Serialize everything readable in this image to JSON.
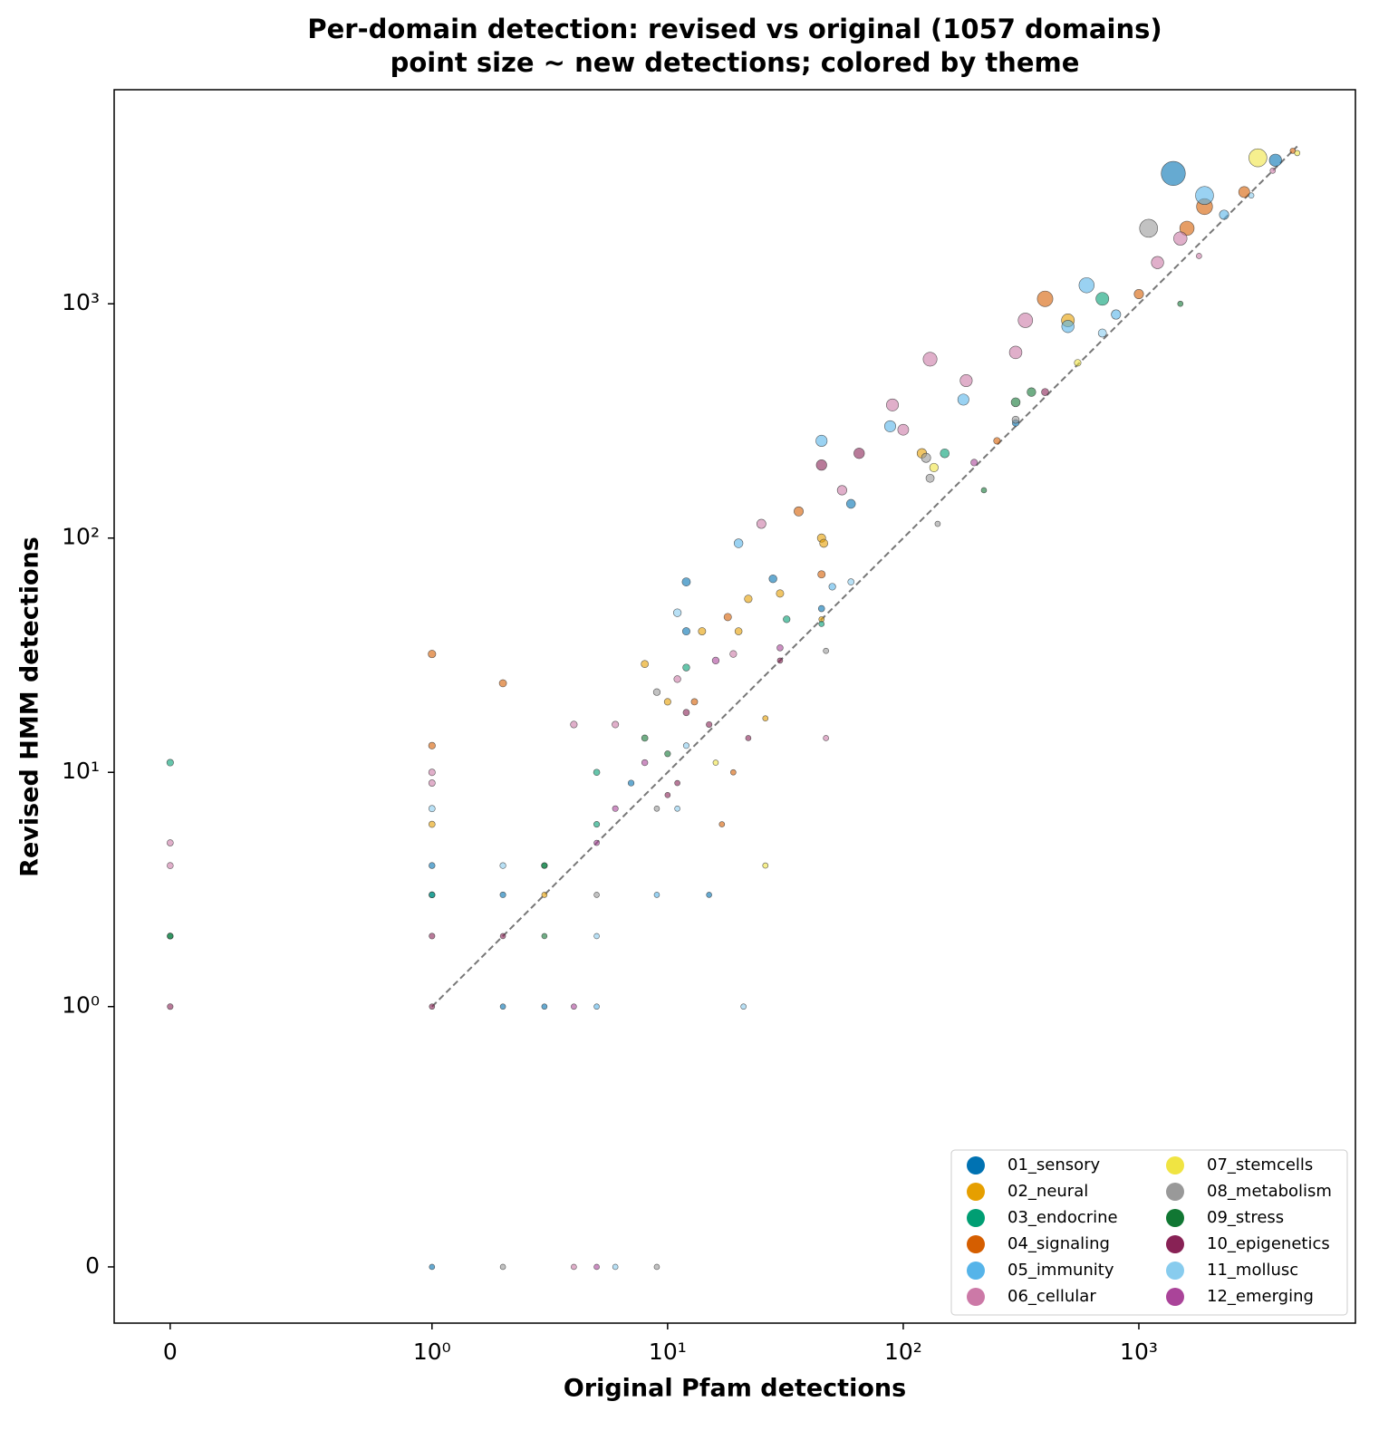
{
  "chart_data": {
    "type": "scatter",
    "title": "Per-domain detection: revised vs original (1057 domains)",
    "subtitle": "point size ~ new detections; colored by theme",
    "x_label": "Original Pfam detections",
    "y_label": "Revised HMM detections",
    "x_scale": "symlog",
    "y_scale": "symlog",
    "xlim": [
      -0.214,
      8300
    ],
    "ylim": [
      -0.216,
      8200
    ],
    "xticks": [
      0,
      {
        "value": 1,
        "label": "10⁰"
      },
      {
        "value": 10,
        "label": "10¹"
      },
      {
        "value": 100,
        "label": "10²"
      },
      {
        "value": 1000,
        "label": "10³"
      }
    ],
    "yticks": [
      0,
      {
        "value": 1,
        "label": "10⁰"
      },
      {
        "value": 10,
        "label": "10¹"
      },
      {
        "value": 100,
        "label": "10²"
      },
      {
        "value": 1000,
        "label": "10³"
      }
    ],
    "grid": false,
    "legend": "lower right",
    "identity_line": {
      "x": [
        1,
        4700
      ],
      "y": [
        1,
        4700
      ]
    },
    "series": [
      {
        "name": "01_sensory",
        "color": "#0072B2",
        "x": [
          1400,
          3800,
          12,
          12,
          28,
          60,
          1,
          1,
          1,
          2,
          2,
          7,
          15,
          3,
          300,
          45
        ],
        "y": [
          3600,
          4100,
          65,
          40,
          67,
          140,
          4,
          3,
          0,
          1,
          3,
          9,
          3,
          1,
          310,
          50
        ],
        "sizes": [
          2200,
          300,
          53,
          28,
          39,
          80,
          3,
          2,
          0,
          0,
          1,
          2,
          0,
          0,
          10,
          5
        ]
      },
      {
        "name": "02_neural",
        "color": "#E69F00",
        "x": [
          500,
          45,
          46,
          22,
          20,
          8,
          10,
          14,
          30,
          120,
          1,
          3,
          26,
          45
        ],
        "y": [
          850,
          100,
          95,
          55,
          40,
          29,
          20,
          40,
          58,
          230,
          6,
          3,
          17,
          45
        ],
        "sizes": [
          350,
          55,
          49,
          33,
          20,
          21,
          10,
          26,
          28,
          110,
          5,
          0,
          0,
          0
        ]
      },
      {
        "name": "03_endocrine",
        "color": "#009E73",
        "x": [
          700,
          0,
          0,
          1,
          150,
          12,
          32,
          5,
          5,
          3,
          45
        ],
        "y": [
          1050,
          11,
          2,
          3,
          230,
          28,
          45,
          10,
          6,
          4,
          43
        ],
        "sizes": [
          350,
          11,
          2,
          2,
          80,
          16,
          13,
          5,
          1,
          1,
          0
        ]
      },
      {
        "name": "04_signaling",
        "color": "#D55E00",
        "x": [
          400,
          1600,
          1900,
          1,
          1,
          2,
          36,
          45,
          18,
          17,
          19,
          1000,
          250,
          2800,
          4500,
          13
        ],
        "y": [
          1050,
          2100,
          2600,
          32,
          13,
          24,
          130,
          70,
          46,
          6,
          10,
          1100,
          260,
          3000,
          4500,
          20
        ],
        "sizes": [
          650,
          500,
          700,
          31,
          12,
          22,
          94,
          25,
          28,
          0,
          0,
          100,
          10,
          200,
          0,
          7
        ]
      },
      {
        "name": "05_immunity",
        "color": "#56B4E9",
        "x": [
          600,
          1900,
          45,
          180,
          88,
          20,
          50,
          500,
          800,
          2300,
          5,
          9
        ],
        "y": [
          1200,
          2900,
          260,
          390,
          300,
          95,
          62,
          800,
          900,
          2400,
          1,
          3
        ],
        "sizes": [
          600,
          1000,
          215,
          210,
          212,
          75,
          12,
          300,
          100,
          100,
          0,
          0
        ]
      },
      {
        "name": "06_cellular",
        "color": "#CC79A7",
        "x": [
          130,
          330,
          300,
          90,
          100,
          185,
          1500,
          1200,
          1800,
          55,
          25,
          19,
          11,
          4,
          0,
          0,
          1,
          1,
          6,
          47,
          4,
          3700
        ],
        "y": [
          580,
          850,
          620,
          370,
          290,
          470,
          1900,
          1500,
          1600,
          160,
          115,
          32,
          25,
          16,
          5,
          4,
          10,
          9,
          16,
          14,
          0,
          3700
        ],
        "sizes": [
          450,
          520,
          320,
          280,
          190,
          285,
          400,
          300,
          0,
          105,
          90,
          13,
          14,
          12,
          5,
          4,
          9,
          8,
          10,
          0,
          0,
          0
        ]
      },
      {
        "name": "07_stemcells",
        "color": "#F0E442",
        "x": [
          3200,
          4700,
          135,
          26,
          16,
          550
        ],
        "y": [
          4200,
          4400,
          200,
          4,
          11,
          560
        ],
        "sizes": [
          1000,
          0,
          65,
          0,
          0,
          10
        ]
      },
      {
        "name": "08_metabolism",
        "color": "#999999",
        "x": [
          1100,
          125,
          130,
          140,
          47,
          9,
          9,
          9,
          2,
          5,
          300
        ],
        "y": [
          2100,
          220,
          180,
          115,
          33,
          22,
          7,
          0,
          0,
          3,
          320
        ],
        "sizes": [
          1000,
          95,
          50,
          0,
          0,
          13,
          0,
          0,
          0,
          0,
          20
        ]
      },
      {
        "name": "09_stress",
        "color": "#117733",
        "x": [
          1500,
          300,
          220,
          10,
          8,
          3,
          3,
          0,
          350
        ],
        "y": [
          1000,
          380,
          160,
          12,
          14,
          4,
          2,
          2,
          420
        ],
        "sizes": [
          0,
          80,
          0,
          2,
          6,
          1,
          0,
          2,
          70
        ]
      },
      {
        "name": "10_epigenetics",
        "color": "#882255",
        "x": [
          65,
          45,
          12,
          30,
          15,
          22,
          11,
          2,
          1,
          0,
          1,
          400,
          10
        ],
        "y": [
          230,
          205,
          18,
          30,
          16,
          14,
          9,
          2,
          2,
          1,
          1,
          420,
          8
        ],
        "sizes": [
          165,
          160,
          6,
          0,
          1,
          0,
          0,
          0,
          1,
          1,
          0,
          20,
          0
        ]
      },
      {
        "name": "11_mollusc",
        "color": "#88CCEE",
        "x": [
          1,
          5,
          21,
          6,
          11,
          11,
          60,
          700,
          3000,
          2,
          12
        ],
        "y": [
          7,
          2,
          1,
          0,
          48,
          7,
          65,
          750,
          2900,
          4,
          13
        ],
        "sizes": [
          6,
          0,
          0,
          0,
          37,
          0,
          5,
          50,
          0,
          2,
          1
        ]
      },
      {
        "name": "12_emerging",
        "color": "#AA4499",
        "x": [
          5,
          4,
          16,
          8,
          5,
          30,
          200,
          6
        ],
        "y": [
          0,
          1,
          30,
          11,
          5,
          34,
          210,
          7
        ],
        "sizes": [
          0,
          0,
          14,
          3,
          0,
          4,
          10,
          1
        ]
      }
    ]
  }
}
